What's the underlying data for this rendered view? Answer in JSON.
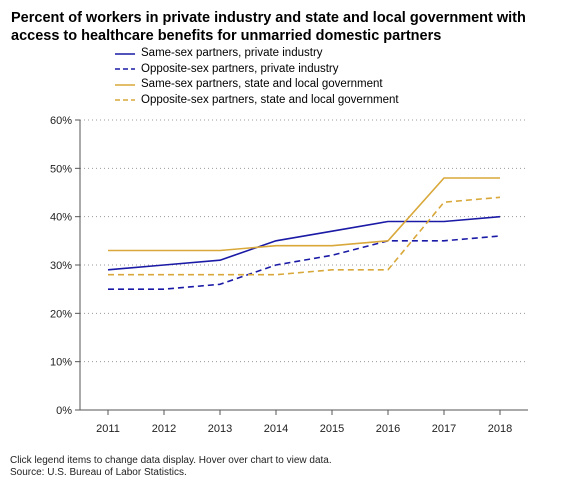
{
  "chart_data": {
    "type": "line",
    "title": "Percent of workers in private industry and state and local government with access to healthcare benefits for unmarried domestic partners",
    "categories": [
      "2011",
      "2012",
      "2013",
      "2014",
      "2015",
      "2016",
      "2017",
      "2018"
    ],
    "y_ticks": [
      "0%",
      "10%",
      "20%",
      "30%",
      "40%",
      "50%",
      "60%"
    ],
    "ylim": [
      0,
      60
    ],
    "grid": true,
    "legend_placement": "top",
    "series": [
      {
        "name": "Same-sex partners, private industry",
        "color": "#1a1aa6",
        "dashed": false,
        "values": [
          29,
          30,
          31,
          35,
          37,
          39,
          39,
          40
        ]
      },
      {
        "name": "Opposite-sex partners, private industry",
        "color": "#1a1aa6",
        "dashed": true,
        "values": [
          25,
          25,
          26,
          30,
          32,
          35,
          35,
          36
        ]
      },
      {
        "name": "Same-sex partners, state and local government",
        "color": "#d9a83a",
        "dashed": false,
        "values": [
          33,
          33,
          33,
          34,
          34,
          35,
          48,
          48
        ]
      },
      {
        "name": "Opposite-sex partners, state and local government",
        "color": "#d9a83a",
        "dashed": true,
        "values": [
          28,
          28,
          28,
          28,
          29,
          29,
          43,
          44
        ]
      }
    ]
  },
  "footer": {
    "note": "Click legend items to change data display. Hover over chart to view data.",
    "source": "Source: U.S. Bureau of Labor Statistics."
  }
}
